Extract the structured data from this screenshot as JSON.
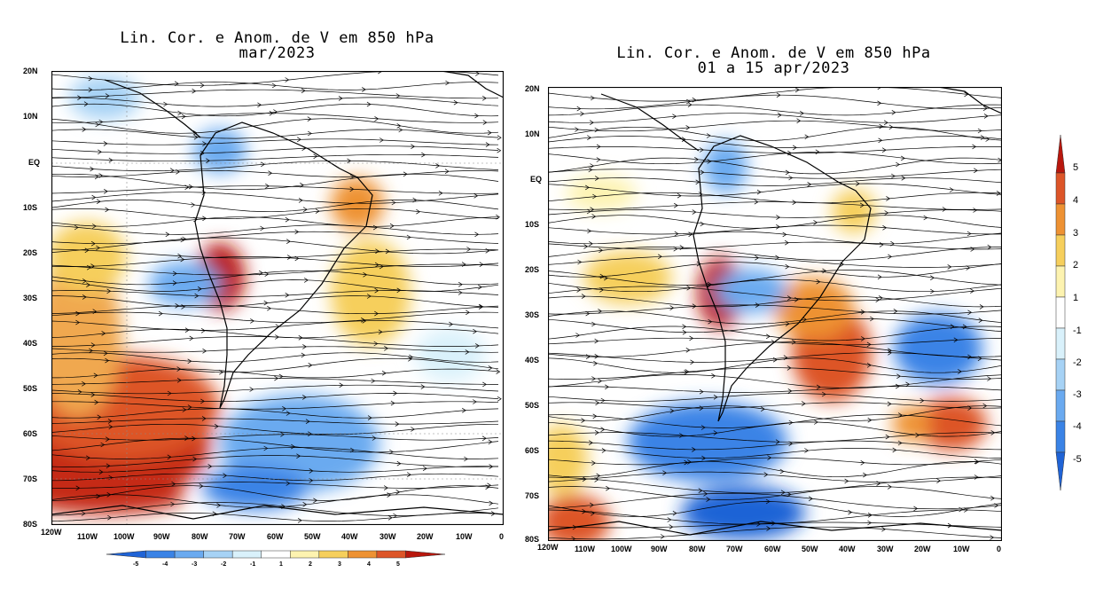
{
  "left_map": {
    "title_line1": "Lin. Cor. e Anom. de V em 850 hPa",
    "title_line2": "mar/2023",
    "lat_labels": [
      "20N",
      "10N",
      "EQ",
      "10S",
      "20S",
      "30S",
      "40S",
      "50S",
      "60S",
      "70S",
      "80S"
    ],
    "lon_labels": [
      "120W",
      "110W",
      "100W",
      "90W",
      "80W",
      "70W",
      "60W",
      "50W",
      "40W",
      "30W",
      "20W",
      "10W",
      "0"
    ]
  },
  "right_map": {
    "title_line1": "Lin. Cor. e Anom. de V em 850 hPa",
    "title_line2": "01 a 15 apr/2023",
    "lat_labels": [
      "20N",
      "10N",
      "EQ",
      "10S",
      "20S",
      "30S",
      "40S",
      "50S",
      "60S",
      "70S",
      "80S"
    ],
    "lon_labels": [
      "120W",
      "110W",
      "100W",
      "90W",
      "80W",
      "70W",
      "60W",
      "50W",
      "40W",
      "30W",
      "20W",
      "10W",
      "0"
    ]
  },
  "colorbar": {
    "labels": [
      "-5",
      "-4",
      "-3",
      "-2",
      "-1",
      "1",
      "2",
      "3",
      "4",
      "5"
    ],
    "colors": [
      "#1f63d6",
      "#3a83e6",
      "#6aaaf0",
      "#a6d2f5",
      "#d9f1fb",
      "#ffffff",
      "#fdf3b0",
      "#f6cf5c",
      "#ee9233",
      "#dd5528",
      "#b8170d"
    ],
    "horizontal_labels": [
      "-5",
      "-4",
      "-3",
      "-2",
      "-1",
      "1",
      "2",
      "3",
      "4",
      "5"
    ]
  }
}
